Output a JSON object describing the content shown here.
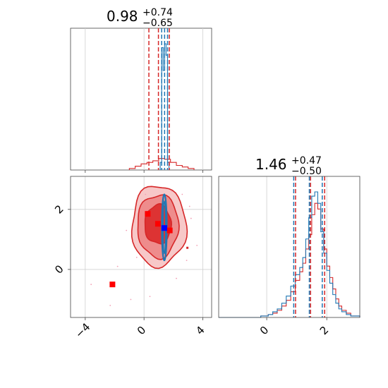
{
  "chart_data": {
    "type": "corner",
    "grid": true,
    "parameters": [
      {
        "title": {
          "median": "0.98",
          "plus": "+0.74",
          "minus": "−0.65"
        },
        "range": [
          -5,
          4.6
        ],
        "ticks": [
          -4,
          0,
          4
        ],
        "tick_labels": [
          "−4",
          "0",
          "4"
        ],
        "quantiles": {
          "red": [
            0.33,
            0.98,
            1.72
          ],
          "blue": [
            1.2,
            1.4,
            1.6
          ]
        }
      },
      {
        "title": {
          "median": "1.46",
          "plus": "+0.47",
          "minus": "−0.50"
        },
        "range": [
          -1.6,
          3.1
        ],
        "ticks": [
          0,
          2
        ],
        "tick_labels": [
          "0",
          "2"
        ],
        "quantiles": {
          "red": [
            0.96,
            1.46,
            1.93
          ],
          "blue": [
            0.9,
            1.42,
            1.85
          ]
        }
      }
    ],
    "marginal_1d_param1": {
      "red_bins_x": [
        -1.0,
        -0.6,
        -0.2,
        0.2,
        0.6,
        1.0,
        1.4,
        1.8,
        2.2,
        2.6,
        3.0,
        3.4
      ],
      "red_counts": [
        2,
        5,
        8,
        10,
        12,
        15,
        14,
        10,
        6,
        4,
        2
      ],
      "blue_bins_x": [
        1.1,
        1.2,
        1.3,
        1.4,
        1.5,
        1.6,
        1.7
      ],
      "blue_counts": [
        10,
        160,
        130,
        165,
        150,
        10
      ]
    },
    "marginal_1d_param2": {
      "bins_x": [
        -1.6,
        -0.2,
        0.05,
        0.2,
        0.35,
        0.5,
        0.65,
        0.8,
        0.95,
        1.1,
        1.2,
        1.3,
        1.4,
        1.5,
        1.6,
        1.7,
        1.8,
        1.9,
        2.0,
        2.1,
        2.2,
        2.3,
        2.4,
        2.5,
        2.65,
        2.8,
        3.1
      ],
      "red_counts": [
        0,
        1,
        2,
        3,
        5,
        8,
        12,
        18,
        26,
        32,
        38,
        48,
        58,
        72,
        80,
        76,
        62,
        48,
        36,
        28,
        20,
        13,
        8,
        5,
        3,
        1
      ],
      "blue_counts": [
        0,
        1,
        2,
        4,
        6,
        10,
        15,
        22,
        30,
        35,
        42,
        55,
        70,
        85,
        88,
        80,
        60,
        45,
        33,
        24,
        16,
        10,
        6,
        4,
        2,
        1
      ]
    },
    "joint_2d": {
      "red_contours": [
        {
          "level": "outer",
          "cx": 1.0,
          "cy": 1.45,
          "rx": 1.85,
          "ry": 1.35,
          "fill": "#f7c8c8"
        },
        {
          "level": "mid",
          "cx": 0.95,
          "cy": 1.45,
          "rx": 1.4,
          "ry": 1.05,
          "fill": "#ee8c8c"
        },
        {
          "level": "inner",
          "cx": 0.95,
          "cy": 1.5,
          "rx": 0.9,
          "ry": 0.65,
          "fill": "#dd3333"
        }
      ],
      "blue_contour": {
        "cx": 1.38,
        "cy": 1.4,
        "rx": 0.17,
        "ry": 1.1
      },
      "red_markers": [
        {
          "x": -2.15,
          "y": -0.5
        },
        {
          "x": 0.25,
          "y": 1.85
        },
        {
          "x": 0.95,
          "y": 1.52
        },
        {
          "x": 1.75,
          "y": 1.3
        }
      ],
      "blue_marker": {
        "x": 1.38,
        "y": 1.38
      },
      "scatter_points": [
        {
          "x": -3.6,
          "y": -0.5
        },
        {
          "x": -2.3,
          "y": -1.2
        },
        {
          "x": -1.8,
          "y": 0.1
        },
        {
          "x": -0.5,
          "y": 0.4
        },
        {
          "x": 0.4,
          "y": -0.9
        },
        {
          "x": 2.9,
          "y": 0.3
        },
        {
          "x": 3.2,
          "y": 1.7
        },
        {
          "x": 3.1,
          "y": 2.1
        },
        {
          "x": -1.2,
          "y": 1.3
        },
        {
          "x": 2.6,
          "y": 2.5
        },
        {
          "x": 3.6,
          "y": 0.8
        },
        {
          "x": -0.9,
          "y": -1.0
        },
        {
          "x": 2.2,
          "y": -0.3
        },
        {
          "x": 1.9,
          "y": 2.6
        },
        {
          "x": 0.1,
          "y": 2.5
        }
      ],
      "outlier_marker": {
        "x": 2.95,
        "y": 0.72
      }
    },
    "colors": {
      "red": "#d62728",
      "blue": "#1f77b4"
    }
  }
}
